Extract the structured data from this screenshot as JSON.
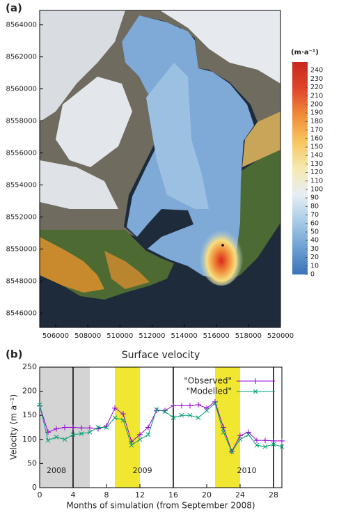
{
  "chart_data": [
    {
      "type": "map",
      "panel_label": "(a)",
      "xlim": [
        505000,
        520000
      ],
      "xticks": [
        506000,
        508000,
        510000,
        512000,
        514000,
        516000,
        518000,
        520000
      ],
      "ylim": [
        8545100,
        8564900
      ],
      "yticks": [
        8546000,
        8548000,
        8550000,
        8552000,
        8554000,
        8556000,
        8558000,
        8560000,
        8562000,
        8564000
      ],
      "colorbar": {
        "label": "(m·a⁻¹)",
        "lim": [
          0,
          250
        ],
        "ticks": [
          0,
          10,
          20,
          30,
          40,
          50,
          60,
          70,
          80,
          90,
          100,
          110,
          120,
          130,
          140,
          150,
          160,
          170,
          180,
          190,
          200,
          210,
          220,
          230,
          240
        ],
        "colors": [
          "#3a73b8",
          "#6e9fd2",
          "#a9cbe6",
          "#e6eef3",
          "#f6e9b0",
          "#f7c560",
          "#f08c3a",
          "#e0452b",
          "#c8281e"
        ]
      }
    },
    {
      "type": "line",
      "panel_label": "(b)",
      "title": "Surface velocity",
      "x_label": "Months of simulation (from September 2008)",
      "y_label": "Velocity (m a⁻¹)",
      "xlim": [
        0,
        29
      ],
      "xticks": [
        0,
        4,
        8,
        12,
        16,
        20,
        24,
        28
      ],
      "ylim": [
        0,
        250
      ],
      "yticks": [
        0,
        50,
        100,
        150,
        200,
        250
      ],
      "shaded_regions": [
        {
          "start": 0,
          "end": 6,
          "color": "#d4d4d4"
        },
        {
          "start": 9,
          "end": 12,
          "color": "#f1e630"
        },
        {
          "start": 21,
          "end": 24,
          "color": "#f1e630"
        }
      ],
      "vlines": [
        4,
        16,
        28
      ],
      "annotations": [
        "2008",
        "2009",
        "2010"
      ],
      "legend": "upper right",
      "x": [
        0,
        1,
        2,
        3,
        4,
        5,
        6,
        7,
        8,
        9,
        10,
        11,
        12,
        13,
        14,
        15,
        16,
        17,
        18,
        19,
        20,
        21,
        22,
        23,
        24,
        25,
        26,
        27,
        28,
        29
      ],
      "series": [
        {
          "name": "\"Observed\"",
          "color": "#9400d3",
          "marker": "+",
          "values": [
            170,
            115,
            122,
            125,
            125,
            124,
            124,
            122,
            128,
            165,
            153,
            95,
            110,
            125,
            160,
            160,
            170,
            170,
            170,
            172,
            165,
            178,
            125,
            75,
            108,
            115,
            98,
            98,
            97,
            97
          ]
        },
        {
          "name": "\"Modelled\"",
          "color": "#009e73",
          "marker": "x",
          "values": [
            172,
            98,
            105,
            100,
            110,
            112,
            115,
            125,
            125,
            145,
            140,
            88,
            100,
            110,
            162,
            158,
            145,
            150,
            150,
            145,
            160,
            175,
            115,
            75,
            100,
            110,
            88,
            85,
            90,
            85
          ]
        }
      ]
    }
  ]
}
